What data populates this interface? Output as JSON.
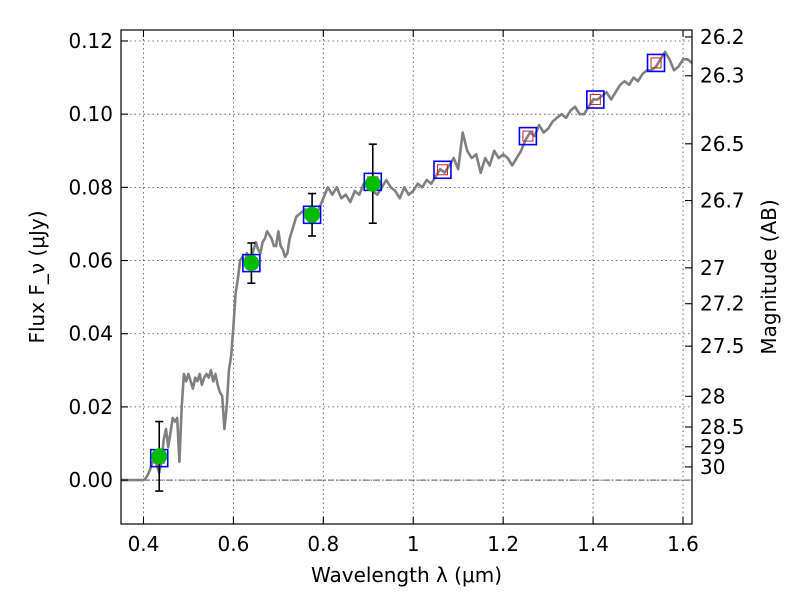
{
  "chart_data": {
    "type": "line",
    "xlabel": "Wavelength λ (μm)",
    "ylabel": "Flux F_ν (μJy)",
    "ylabel_right": "Magnitude (AB)",
    "xlim": [
      0.35,
      1.62
    ],
    "ylim": [
      -0.012,
      0.123
    ],
    "x_ticks": [
      0.4,
      0.6,
      0.8,
      1.0,
      1.2,
      1.4,
      1.6
    ],
    "x_tick_labels": [
      "0.4",
      "0.6",
      "0.8",
      "1",
      "1.2",
      "1.4",
      "1.6"
    ],
    "y_ticks": [
      0.0,
      0.02,
      0.04,
      0.06,
      0.08,
      0.1,
      0.12
    ],
    "y_tick_labels": [
      "0.00",
      "0.02",
      "0.04",
      "0.06",
      "0.08",
      "0.10",
      "0.12"
    ],
    "right_ticks": [
      {
        "label": "26.2",
        "flux": 0.1211
      },
      {
        "label": "26.3",
        "flux": 0.1105
      },
      {
        "label": "26.5",
        "flux": 0.0919
      },
      {
        "label": "26.7",
        "flux": 0.0764
      },
      {
        "label": "27",
        "flux": 0.058
      },
      {
        "label": "27.2",
        "flux": 0.0482
      },
      {
        "label": "27.5",
        "flux": 0.0366
      },
      {
        "label": "28",
        "flux": 0.0229
      },
      {
        "label": "28.5",
        "flux": 0.0145
      },
      {
        "label": "29",
        "flux": 0.0091
      },
      {
        "label": "30",
        "flux": 0.0036
      }
    ],
    "grid": true,
    "zero_line": true,
    "colors": {
      "spectrum": "#808080",
      "observed_marker": "#00bb00",
      "model_box": "#0000ff",
      "model_inner": "#cc2222",
      "errorbar": "#000000",
      "zero_line": "#555555"
    },
    "spectrum": {
      "x": [
        0.33,
        0.4,
        0.405,
        0.41,
        0.415,
        0.42,
        0.425,
        0.43,
        0.435,
        0.44,
        0.445,
        0.45,
        0.455,
        0.46,
        0.465,
        0.47,
        0.475,
        0.48,
        0.485,
        0.49,
        0.495,
        0.5,
        0.505,
        0.51,
        0.515,
        0.52,
        0.525,
        0.53,
        0.535,
        0.54,
        0.545,
        0.55,
        0.555,
        0.56,
        0.565,
        0.57,
        0.575,
        0.58,
        0.585,
        0.59,
        0.595,
        0.6,
        0.605,
        0.61,
        0.615,
        0.62,
        0.625,
        0.63,
        0.635,
        0.64,
        0.645,
        0.65,
        0.655,
        0.66,
        0.665,
        0.67,
        0.675,
        0.68,
        0.685,
        0.69,
        0.695,
        0.7,
        0.705,
        0.71,
        0.715,
        0.72,
        0.725,
        0.73,
        0.74,
        0.75,
        0.76,
        0.77,
        0.78,
        0.79,
        0.8,
        0.81,
        0.82,
        0.83,
        0.84,
        0.85,
        0.86,
        0.87,
        0.88,
        0.89,
        0.9,
        0.91,
        0.92,
        0.93,
        0.94,
        0.95,
        0.96,
        0.97,
        0.98,
        0.99,
        1.0,
        1.01,
        1.02,
        1.03,
        1.04,
        1.05,
        1.06,
        1.07,
        1.08,
        1.09,
        1.1,
        1.11,
        1.12,
        1.13,
        1.14,
        1.15,
        1.16,
        1.17,
        1.18,
        1.19,
        1.2,
        1.21,
        1.22,
        1.23,
        1.24,
        1.25,
        1.26,
        1.27,
        1.28,
        1.29,
        1.3,
        1.31,
        1.32,
        1.33,
        1.34,
        1.35,
        1.36,
        1.37,
        1.38,
        1.39,
        1.4,
        1.41,
        1.42,
        1.43,
        1.44,
        1.45,
        1.46,
        1.47,
        1.48,
        1.49,
        1.5,
        1.51,
        1.52,
        1.53,
        1.54,
        1.55,
        1.56,
        1.57,
        1.58,
        1.59,
        1.6,
        1.61,
        1.62
      ],
      "y": [
        0.0,
        0.0,
        0.0005,
        0.0015,
        0.003,
        0.005,
        0.006,
        0.004,
        0.002,
        0.005,
        0.011,
        0.014,
        0.009,
        0.013,
        0.017,
        0.016,
        0.017,
        0.005,
        0.02,
        0.029,
        0.027,
        0.029,
        0.027,
        0.025,
        0.028,
        0.027,
        0.029,
        0.026,
        0.028,
        0.029,
        0.028,
        0.03,
        0.027,
        0.029,
        0.026,
        0.024,
        0.023,
        0.014,
        0.02,
        0.03,
        0.034,
        0.042,
        0.051,
        0.055,
        0.06,
        0.061,
        0.059,
        0.062,
        0.06,
        0.061,
        0.063,
        0.065,
        0.063,
        0.062,
        0.065,
        0.066,
        0.068,
        0.067,
        0.066,
        0.064,
        0.064,
        0.068,
        0.064,
        0.063,
        0.061,
        0.062,
        0.066,
        0.068,
        0.072,
        0.073,
        0.074,
        0.073,
        0.0725,
        0.074,
        0.077,
        0.08,
        0.078,
        0.08,
        0.077,
        0.078,
        0.076,
        0.079,
        0.078,
        0.081,
        0.08,
        0.079,
        0.078,
        0.08,
        0.082,
        0.08,
        0.079,
        0.077,
        0.08,
        0.078,
        0.079,
        0.081,
        0.08,
        0.082,
        0.081,
        0.083,
        0.085,
        0.084,
        0.086,
        0.088,
        0.085,
        0.095,
        0.09,
        0.088,
        0.089,
        0.084,
        0.088,
        0.086,
        0.09,
        0.088,
        0.089,
        0.088,
        0.086,
        0.088,
        0.09,
        0.093,
        0.095,
        0.094,
        0.097,
        0.095,
        0.096,
        0.098,
        0.099,
        0.1,
        0.099,
        0.101,
        0.102,
        0.1,
        0.1,
        0.102,
        0.104,
        0.104,
        0.105,
        0.106,
        0.104,
        0.106,
        0.108,
        0.109,
        0.108,
        0.11,
        0.109,
        0.111,
        0.112,
        0.112,
        0.113,
        0.115,
        0.117,
        0.115,
        0.112,
        0.113,
        0.115,
        0.115,
        0.114
      ]
    },
    "observed": {
      "x": [
        0.435,
        0.64,
        0.775,
        0.91
      ],
      "y": [
        0.0065,
        0.0593,
        0.0725,
        0.081
      ],
      "err": [
        0.0095,
        0.0055,
        0.0058,
        0.0108
      ]
    },
    "model_boxes": {
      "x": [
        0.435,
        0.64,
        0.775,
        0.91,
        1.065,
        1.255,
        1.405,
        1.54
      ],
      "y": [
        0.006,
        0.0593,
        0.0725,
        0.0815,
        0.0848,
        0.094,
        0.104,
        0.114
      ]
    }
  }
}
